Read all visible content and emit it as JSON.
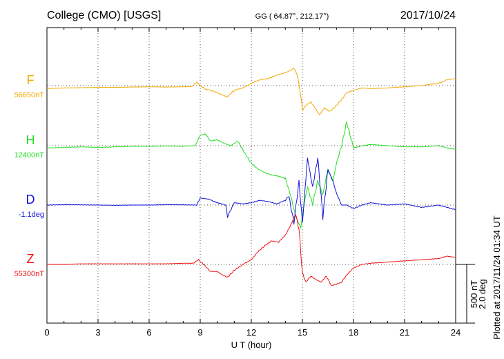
{
  "header": {
    "station": "College (CMO)  [USGS]",
    "coords": "GG ( 64.87°, 212.17°)",
    "date": "2017/10/24"
  },
  "side_note": "Plotted at 2017/11/24 01:34 UT",
  "chart_data": {
    "type": "line",
    "xlabel": "U T (hour)",
    "xlim": [
      0,
      24
    ],
    "xticks": [
      "0",
      "3",
      "6",
      "9",
      "12",
      "15",
      "18",
      "21",
      "24"
    ],
    "scale_bar": {
      "line1": "500 nT",
      "line2": "2.0 deg"
    },
    "grid": true,
    "series": [
      {
        "name": "F",
        "baseline_label": "56650nT",
        "color": "#f0a800",
        "x": [
          0,
          1,
          2,
          3,
          4,
          5,
          6,
          7,
          8,
          8.5,
          8.8,
          9,
          9.3,
          9.6,
          10,
          10.3,
          10.6,
          11,
          11.5,
          12,
          12.5,
          13,
          13.5,
          14,
          14.3,
          14.5,
          14.7,
          14.9,
          15,
          15.2,
          15.5,
          15.8,
          16,
          16.3,
          16.6,
          17,
          17.3,
          17.6,
          18,
          18.5,
          19,
          20,
          21,
          22,
          23,
          23.5,
          24
        ],
        "values": [
          -25,
          -20,
          -18,
          -15,
          -15,
          -12,
          -10,
          -12,
          -10,
          -8,
          30,
          0,
          -30,
          -40,
          -60,
          -80,
          -95,
          -40,
          -20,
          20,
          50,
          60,
          90,
          110,
          130,
          150,
          90,
          -80,
          -210,
          -170,
          -140,
          -200,
          -250,
          -190,
          -220,
          -170,
          -120,
          -60,
          -40,
          -20,
          -25,
          -20,
          -10,
          0,
          20,
          50,
          60
        ]
      },
      {
        "name": "H",
        "baseline_label": "12400nT",
        "color": "#22dd22",
        "x": [
          0,
          1,
          2,
          3,
          4,
          5,
          6,
          7,
          8,
          8.7,
          9,
          9.3,
          9.6,
          10,
          10.4,
          10.8,
          11.2,
          11.6,
          12,
          12.4,
          12.8,
          13.2,
          13.6,
          14,
          14.3,
          14.6,
          14.9,
          15.1,
          15.3,
          15.6,
          15.9,
          16.2,
          16.5,
          16.8,
          17,
          17.3,
          17.6,
          18,
          18.5,
          19,
          20,
          21,
          22,
          23,
          23.5,
          24
        ],
        "values": [
          -20,
          -15,
          -10,
          -15,
          -10,
          -5,
          -5,
          -3,
          -5,
          0,
          90,
          100,
          40,
          50,
          20,
          0,
          40,
          -60,
          -150,
          -200,
          -230,
          -250,
          -260,
          -280,
          -420,
          -600,
          -700,
          -500,
          -350,
          -500,
          -300,
          -420,
          -200,
          -300,
          -150,
          0,
          200,
          -20,
          0,
          10,
          0,
          -10,
          -10,
          0,
          -20,
          -30
        ]
      },
      {
        "name": "D",
        "baseline_label": "-1.1deg",
        "color": "#1010dd",
        "x": [
          0,
          1,
          2,
          3,
          4,
          5,
          6,
          7,
          8,
          8.8,
          9,
          9.5,
          10,
          10.5,
          10.6,
          11,
          11.5,
          12,
          12.5,
          13,
          13.5,
          14,
          14.2,
          14.5,
          14.8,
          15,
          15.3,
          15.6,
          15.9,
          16.2,
          16.5,
          16.8,
          17,
          17.3,
          17.6,
          18,
          18.5,
          19,
          20,
          21,
          22,
          23,
          24
        ],
        "values": [
          0,
          3,
          2,
          0,
          -2,
          0,
          0,
          3,
          2,
          0,
          60,
          50,
          20,
          0,
          -100,
          20,
          10,
          20,
          40,
          30,
          10,
          40,
          80,
          -150,
          200,
          -150,
          400,
          150,
          400,
          -100,
          300,
          200,
          100,
          0,
          0,
          -30,
          0,
          20,
          0,
          10,
          -20,
          0,
          -40
        ]
      },
      {
        "name": "Z",
        "baseline_label": "55300nT",
        "color": "#ee1010",
        "x": [
          0,
          1,
          2,
          3,
          4,
          5,
          6,
          7,
          8,
          8.6,
          8.9,
          9.2,
          9.6,
          10,
          10.3,
          10.6,
          11,
          11.5,
          12,
          12.4,
          12.8,
          13.2,
          13.6,
          14,
          14.3,
          14.6,
          14.8,
          15,
          15.2,
          15.5,
          15.8,
          16.1,
          16.4,
          16.7,
          17,
          17.3,
          17.6,
          18,
          18.5,
          19,
          20,
          21,
          22,
          23,
          23.5,
          24
        ],
        "values": [
          0,
          0,
          5,
          5,
          5,
          5,
          5,
          5,
          10,
          10,
          40,
          0,
          -60,
          -60,
          -90,
          -110,
          -50,
          0,
          40,
          110,
          160,
          200,
          190,
          250,
          330,
          430,
          300,
          -70,
          -150,
          -100,
          -130,
          -150,
          -100,
          -180,
          -170,
          -150,
          -90,
          -30,
          0,
          10,
          20,
          30,
          40,
          50,
          70,
          60
        ]
      }
    ]
  }
}
